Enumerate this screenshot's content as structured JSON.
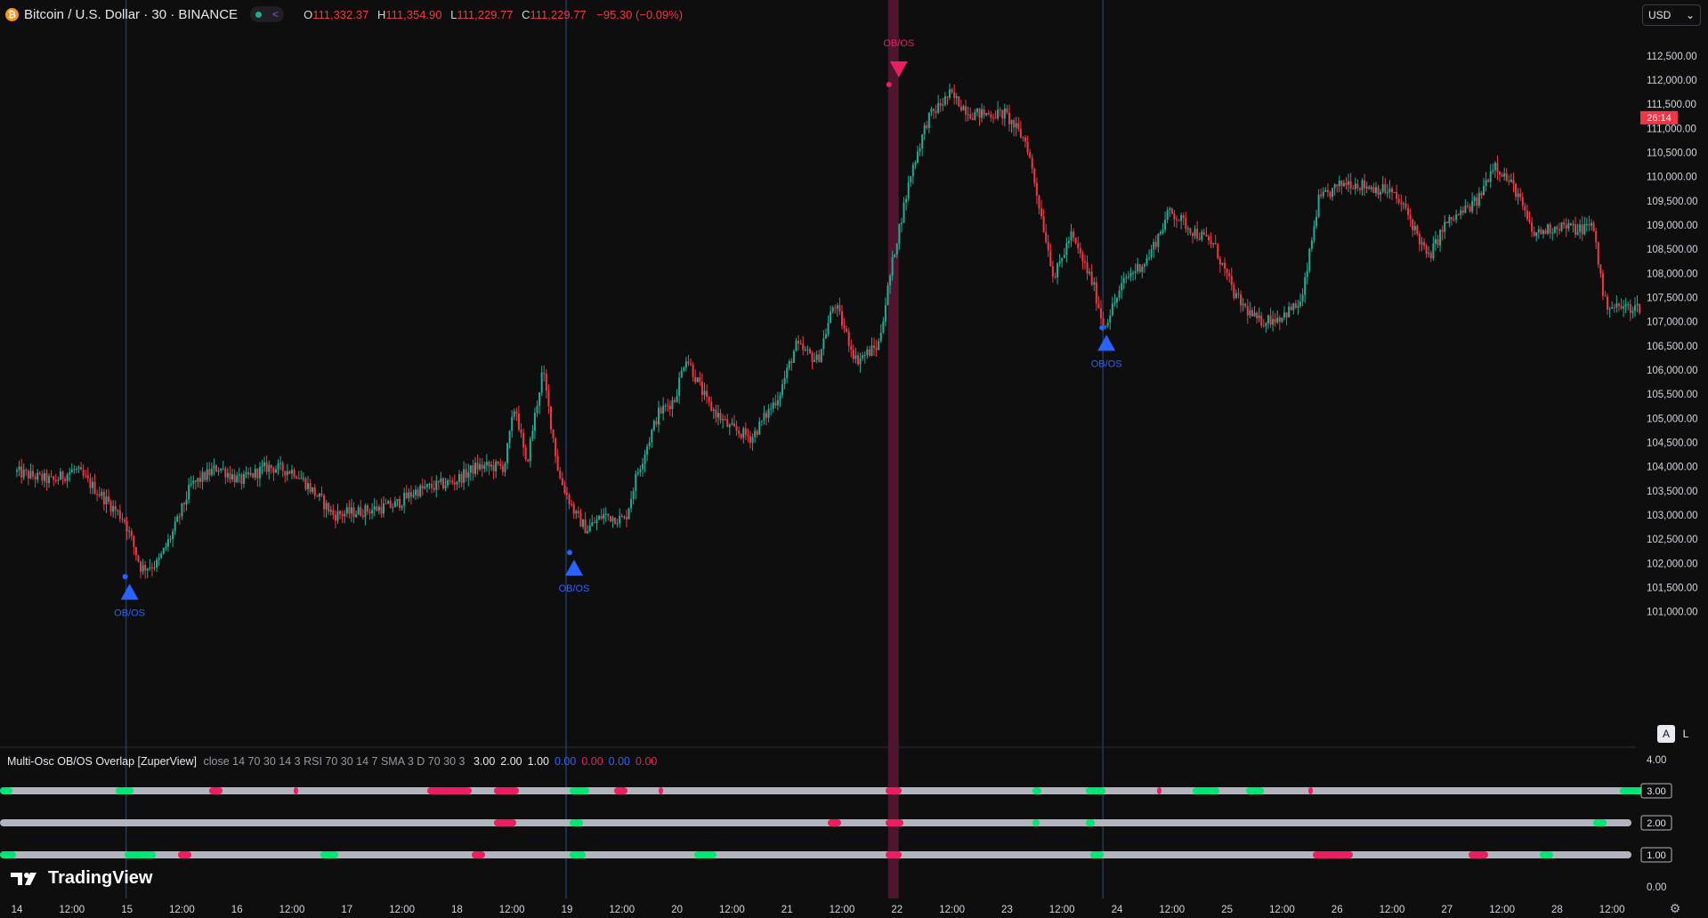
{
  "header": {
    "coin_symbol": "₿",
    "title": "Bitcoin / U.S. Dollar · 30 · BINANCE",
    "ohlc": {
      "o_label": "O",
      "o": "111,332.37",
      "h_label": "H",
      "h": "111,354.90",
      "l_label": "L",
      "l": "111,229.77",
      "c_label": "C",
      "c": "111,229.77",
      "change": "−95.30 (−0.09%)"
    }
  },
  "currency_select": {
    "value": "USD",
    "chevron": "chevron-down-icon"
  },
  "price_axis": {
    "labels": [
      "112,500.00",
      "112,000.00",
      "111,500.00",
      "111,000.00",
      "110,500.00",
      "110,000.00",
      "109,500.00",
      "109,000.00",
      "108,500.00",
      "108,000.00",
      "107,500.00",
      "107,000.00",
      "106,500.00",
      "106,000.00",
      "105,500.00",
      "105,000.00",
      "104,500.00",
      "104,000.00",
      "103,500.00",
      "103,000.00",
      "102,500.00",
      "102,000.00",
      "101,500.00",
      "101,000.00"
    ],
    "countdown": "26:14",
    "countdown_price": 111229.77,
    "countdown_color": "#f23645"
  },
  "time_axis": {
    "labels": [
      "14",
      "12:00",
      "15",
      "12:00",
      "16",
      "12:00",
      "17",
      "12:00",
      "18",
      "12:00",
      "19",
      "12:00",
      "20",
      "12:00",
      "21",
      "12:00",
      "22",
      "12:00",
      "23",
      "12:00",
      "24",
      "12:00",
      "25",
      "12:00",
      "26",
      "12:00",
      "27",
      "12:00",
      "28",
      "12:00"
    ]
  },
  "scale_buttons": {
    "auto": "A",
    "log": "L"
  },
  "indicator": {
    "name": "Multi-Osc OB/OS Overlap [ZuperView]",
    "params": "close 14 70 30 14 3 RSI 70 30 14 7 SMA 3 D 70 30 3",
    "values": [
      {
        "text": "3.00",
        "color": "#e6e8ee"
      },
      {
        "text": "2.00",
        "color": "#e6e8ee"
      },
      {
        "text": "1.00",
        "color": "#e6e8ee"
      },
      {
        "text": "0.00",
        "color": "#2962ff"
      },
      {
        "text": "0.00",
        "color": "#e91e63"
      },
      {
        "text": "0.00",
        "color": "#2962ff"
      },
      {
        "text": "0.00",
        "color": "#e91e63"
      }
    ],
    "axis_labels": [
      "4.00",
      "3.00",
      "2.00",
      "1.00",
      "0.00"
    ],
    "boxed_levels": [
      "3.00",
      "2.00",
      "1.00"
    ]
  },
  "signals": [
    {
      "label": "OB/OS",
      "direction": "up",
      "time": "15",
      "price": 101800
    },
    {
      "label": "OB/OS",
      "direction": "up",
      "time": "19",
      "price": 102300
    },
    {
      "label": "OB/OS",
      "direction": "down",
      "time": "22",
      "price": 111650
    },
    {
      "label": "OB/OS",
      "direction": "up",
      "time": "23 22:30",
      "price": 106950
    }
  ],
  "colors": {
    "up": "#22ab94",
    "down": "#f23645",
    "signal_up": "#2962ff",
    "signal_down": "#e91e63",
    "background": "#0e0e0f",
    "highlight": "#5a1534"
  },
  "brand": {
    "name": "TradingView"
  },
  "icons": {
    "settings": "gear-icon",
    "logo": "tradingview-logo-icon"
  }
}
